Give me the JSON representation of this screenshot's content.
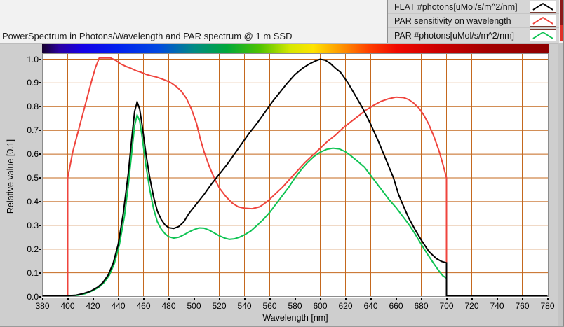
{
  "header": {
    "title": "PowerSpectrum in Photons/Wavelength and PAR spectrum @ 1 m SSD"
  },
  "legend": {
    "items": [
      {
        "label": "FLAT #photons[uMol/s/m^2/nm]",
        "color": "#000000"
      },
      {
        "label": "PAR sensitivity on wavelength",
        "color": "#ef443d"
      },
      {
        "label": "PAR #photons[uMol/s/m^2/nm]",
        "color": "#0fc353"
      }
    ]
  },
  "chart_data": {
    "type": "line",
    "title": "PowerSpectrum in Photons/Wavelength and PAR spectrum @ 1 m SSD",
    "xlabel": "Wavelength [nm]",
    "ylabel": "Relative value [0.1]",
    "xlim": [
      380,
      780
    ],
    "ylim": [
      0,
      1.0236
    ],
    "grid": true,
    "grid_color": "#c4681e",
    "plot_background": "#ffffff",
    "border_color": "#8c8c8c",
    "legend_position": "top-right",
    "spectrum_bar": true,
    "xticks": [
      380,
      400,
      420,
      440,
      460,
      480,
      500,
      520,
      540,
      560,
      580,
      600,
      620,
      640,
      660,
      680,
      700,
      720,
      740,
      760,
      780
    ],
    "xtick_labels": [
      "380",
      "400",
      "420",
      "440",
      "460",
      "480",
      "500",
      "520",
      "540",
      "560",
      "580",
      "600",
      "620",
      "640",
      "660",
      "680",
      "700",
      "720",
      "740",
      "760",
      "780"
    ],
    "ytick_values": [
      0,
      0.1,
      0.2,
      0.3,
      0.4,
      0.5,
      0.6,
      0.7,
      0.8,
      0.9,
      1.0
    ],
    "ytick_labels": [
      "0.0",
      "0.1",
      "0.2",
      "0.3",
      "0.4",
      "0.5",
      "0.6",
      "0.7",
      "0.8",
      "0.9",
      "1.0"
    ],
    "series": [
      {
        "name": "PAR sensitivity on wavelength",
        "color": "#ef443d",
        "width": 2,
        "points": [
          [
            400,
            0
          ],
          [
            400,
            0.5
          ],
          [
            402,
            0.555
          ],
          [
            404,
            0.61
          ],
          [
            407,
            0.67
          ],
          [
            410,
            0.73
          ],
          [
            413,
            0.79
          ],
          [
            416,
            0.85
          ],
          [
            419,
            0.91
          ],
          [
            422,
            0.965
          ],
          [
            425,
            1.005
          ],
          [
            434,
            1.005
          ],
          [
            438,
            0.995
          ],
          [
            442,
            0.98
          ],
          [
            446,
            0.97
          ],
          [
            450,
            0.962
          ],
          [
            454,
            0.952
          ],
          [
            458,
            0.945
          ],
          [
            462,
            0.936
          ],
          [
            466,
            0.93
          ],
          [
            470,
            0.925
          ],
          [
            474,
            0.918
          ],
          [
            478,
            0.91
          ],
          [
            482,
            0.9
          ],
          [
            486,
            0.885
          ],
          [
            490,
            0.865
          ],
          [
            494,
            0.835
          ],
          [
            498,
            0.79
          ],
          [
            502,
            0.73
          ],
          [
            505,
            0.665
          ],
          [
            508,
            0.61
          ],
          [
            512,
            0.55
          ],
          [
            516,
            0.5
          ],
          [
            520,
            0.458
          ],
          [
            525,
            0.423
          ],
          [
            530,
            0.395
          ],
          [
            535,
            0.378
          ],
          [
            540,
            0.372
          ],
          [
            546,
            0.37
          ],
          [
            552,
            0.378
          ],
          [
            558,
            0.4
          ],
          [
            564,
            0.43
          ],
          [
            570,
            0.46
          ],
          [
            576,
            0.495
          ],
          [
            582,
            0.53
          ],
          [
            588,
            0.565
          ],
          [
            594,
            0.595
          ],
          [
            600,
            0.625
          ],
          [
            606,
            0.655
          ],
          [
            612,
            0.68
          ],
          [
            618,
            0.71
          ],
          [
            624,
            0.735
          ],
          [
            630,
            0.76
          ],
          [
            636,
            0.785
          ],
          [
            642,
            0.805
          ],
          [
            648,
            0.822
          ],
          [
            654,
            0.833
          ],
          [
            660,
            0.84
          ],
          [
            666,
            0.838
          ],
          [
            670,
            0.83
          ],
          [
            674,
            0.815
          ],
          [
            678,
            0.795
          ],
          [
            682,
            0.765
          ],
          [
            686,
            0.725
          ],
          [
            690,
            0.675
          ],
          [
            694,
            0.615
          ],
          [
            697,
            0.56
          ],
          [
            699,
            0.52
          ],
          [
            700,
            0.5
          ],
          [
            700,
            0
          ]
        ]
      },
      {
        "name": "PAR #photons[uMol/s/m^2/nm]",
        "color": "#0fc353",
        "width": 2,
        "points": [
          [
            400,
            0
          ],
          [
            408,
            0.005
          ],
          [
            414,
            0.012
          ],
          [
            420,
            0.025
          ],
          [
            425,
            0.04
          ],
          [
            429,
            0.06
          ],
          [
            433,
            0.09
          ],
          [
            437,
            0.14
          ],
          [
            441,
            0.22
          ],
          [
            445,
            0.34
          ],
          [
            448,
            0.47
          ],
          [
            451,
            0.62
          ],
          [
            453,
            0.72
          ],
          [
            455,
            0.765
          ],
          [
            457,
            0.74
          ],
          [
            459,
            0.67
          ],
          [
            462,
            0.55
          ],
          [
            465,
            0.45
          ],
          [
            468,
            0.37
          ],
          [
            471,
            0.315
          ],
          [
            474,
            0.285
          ],
          [
            477,
            0.265
          ],
          [
            480,
            0.252
          ],
          [
            484,
            0.246
          ],
          [
            488,
            0.25
          ],
          [
            492,
            0.26
          ],
          [
            496,
            0.272
          ],
          [
            500,
            0.282
          ],
          [
            504,
            0.289
          ],
          [
            508,
            0.288
          ],
          [
            512,
            0.28
          ],
          [
            516,
            0.268
          ],
          [
            520,
            0.256
          ],
          [
            524,
            0.247
          ],
          [
            528,
            0.241
          ],
          [
            532,
            0.243
          ],
          [
            536,
            0.25
          ],
          [
            540,
            0.26
          ],
          [
            545,
            0.276
          ],
          [
            550,
            0.3
          ],
          [
            555,
            0.325
          ],
          [
            560,
            0.355
          ],
          [
            565,
            0.39
          ],
          [
            570,
            0.425
          ],
          [
            575,
            0.46
          ],
          [
            580,
            0.5
          ],
          [
            585,
            0.535
          ],
          [
            590,
            0.565
          ],
          [
            595,
            0.59
          ],
          [
            600,
            0.608
          ],
          [
            605,
            0.62
          ],
          [
            610,
            0.625
          ],
          [
            615,
            0.622
          ],
          [
            620,
            0.61
          ],
          [
            625,
            0.59
          ],
          [
            630,
            0.568
          ],
          [
            635,
            0.545
          ],
          [
            640,
            0.51
          ],
          [
            645,
            0.475
          ],
          [
            650,
            0.44
          ],
          [
            655,
            0.405
          ],
          [
            660,
            0.375
          ],
          [
            665,
            0.34
          ],
          [
            670,
            0.305
          ],
          [
            675,
            0.265
          ],
          [
            680,
            0.22
          ],
          [
            685,
            0.178
          ],
          [
            690,
            0.138
          ],
          [
            694,
            0.108
          ],
          [
            697,
            0.088
          ],
          [
            700,
            0.077
          ],
          [
            700,
            0
          ]
        ]
      },
      {
        "name": "FLAT #photons[uMol/s/m^2/nm]",
        "color": "#000000",
        "width": 2,
        "points": [
          [
            380,
            0
          ],
          [
            400,
            0
          ],
          [
            406,
            0.005
          ],
          [
            412,
            0.012
          ],
          [
            418,
            0.022
          ],
          [
            424,
            0.04
          ],
          [
            428,
            0.06
          ],
          [
            432,
            0.09
          ],
          [
            436,
            0.14
          ],
          [
            440,
            0.22
          ],
          [
            444,
            0.35
          ],
          [
            448,
            0.52
          ],
          [
            451,
            0.68
          ],
          [
            453,
            0.78
          ],
          [
            455,
            0.82
          ],
          [
            457,
            0.79
          ],
          [
            459,
            0.72
          ],
          [
            462,
            0.6
          ],
          [
            465,
            0.5
          ],
          [
            468,
            0.42
          ],
          [
            471,
            0.36
          ],
          [
            474,
            0.325
          ],
          [
            477,
            0.302
          ],
          [
            480,
            0.29
          ],
          [
            484,
            0.287
          ],
          [
            488,
            0.295
          ],
          [
            492,
            0.315
          ],
          [
            496,
            0.35
          ],
          [
            502,
            0.39
          ],
          [
            508,
            0.43
          ],
          [
            514,
            0.475
          ],
          [
            520,
            0.515
          ],
          [
            526,
            0.555
          ],
          [
            532,
            0.6
          ],
          [
            538,
            0.645
          ],
          [
            544,
            0.69
          ],
          [
            550,
            0.73
          ],
          [
            556,
            0.775
          ],
          [
            562,
            0.82
          ],
          [
            568,
            0.86
          ],
          [
            574,
            0.9
          ],
          [
            580,
            0.935
          ],
          [
            586,
            0.962
          ],
          [
            591,
            0.979
          ],
          [
            596,
            0.992
          ],
          [
            600,
            1.0
          ],
          [
            604,
            0.996
          ],
          [
            608,
            0.982
          ],
          [
            612,
            0.962
          ],
          [
            616,
            0.945
          ],
          [
            622,
            0.9
          ],
          [
            628,
            0.845
          ],
          [
            634,
            0.79
          ],
          [
            640,
            0.725
          ],
          [
            646,
            0.655
          ],
          [
            652,
            0.578
          ],
          [
            658,
            0.5
          ],
          [
            662,
            0.43
          ],
          [
            666,
            0.38
          ],
          [
            670,
            0.332
          ],
          [
            675,
            0.283
          ],
          [
            680,
            0.238
          ],
          [
            686,
            0.19
          ],
          [
            692,
            0.16
          ],
          [
            696,
            0.148
          ],
          [
            700,
            0.142
          ],
          [
            700,
            0
          ],
          [
            780,
            0
          ]
        ]
      }
    ]
  }
}
